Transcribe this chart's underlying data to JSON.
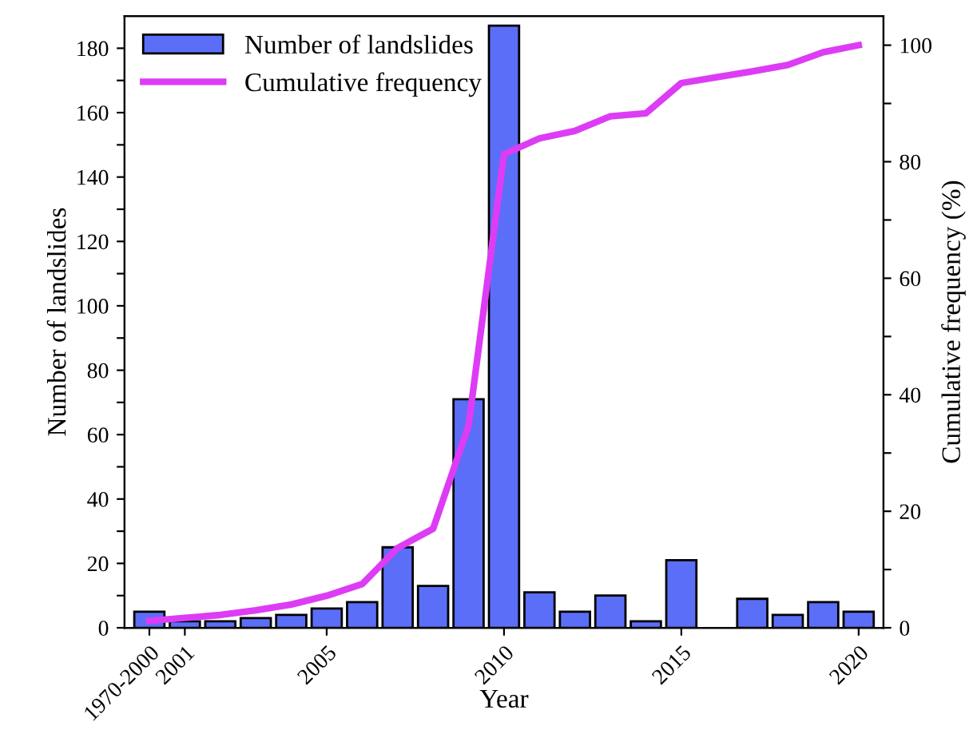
{
  "chart_data": {
    "type": "bar",
    "xlabel": "Year",
    "ylabel": "Number of landslides",
    "y2label": "Cumulative frequency (%)",
    "categories": [
      "1970-2000",
      "2001",
      null,
      null,
      null,
      "2005",
      null,
      null,
      null,
      null,
      "2010",
      null,
      null,
      null,
      null,
      "2015",
      null,
      null,
      null,
      null,
      "2020"
    ],
    "series": [
      {
        "name": "Number of landslides",
        "color": "#5b6ef7",
        "values": [
          5,
          2,
          2,
          3,
          4,
          6,
          8,
          25,
          13,
          71,
          187,
          11,
          5,
          10,
          2,
          21,
          0,
          9,
          4,
          8,
          5
        ]
      },
      {
        "name": "Cumulative frequency",
        "type": "line",
        "axis": "y2",
        "color": "#dd3cf5",
        "values": [
          1.2,
          1.7,
          2.2,
          3.0,
          4.0,
          5.5,
          7.5,
          13.7,
          17.0,
          34.7,
          81.3,
          84.0,
          85.3,
          87.8,
          88.3,
          93.5,
          94.5,
          95.5,
          96.6,
          98.8,
          100
        ]
      }
    ],
    "ylim": [
      0,
      190
    ],
    "yticks": [
      0,
      {
        "value": 10,
        "label": null
      },
      20,
      {
        "value": 30,
        "label": null
      },
      40,
      {
        "value": 50,
        "label": null
      },
      60,
      {
        "value": 70,
        "label": null
      },
      80,
      {
        "value": 90,
        "label": null
      },
      100,
      {
        "value": 110,
        "label": null
      },
      120,
      {
        "value": 130,
        "label": null
      },
      140,
      {
        "value": 150,
        "label": null
      },
      160,
      {
        "value": 170,
        "label": null
      },
      180
    ],
    "y2lim": [
      0,
      105
    ],
    "y2ticks": [
      0,
      {
        "value": 10,
        "label": null
      },
      20,
      {
        "value": 30,
        "label": null
      },
      40,
      {
        "value": 50,
        "label": null
      },
      60,
      {
        "value": 70,
        "label": null
      },
      80,
      {
        "value": 90,
        "label": null
      },
      100
    ],
    "grid": false,
    "legend": "top left",
    "marker": "none",
    "line_style": "solid"
  }
}
